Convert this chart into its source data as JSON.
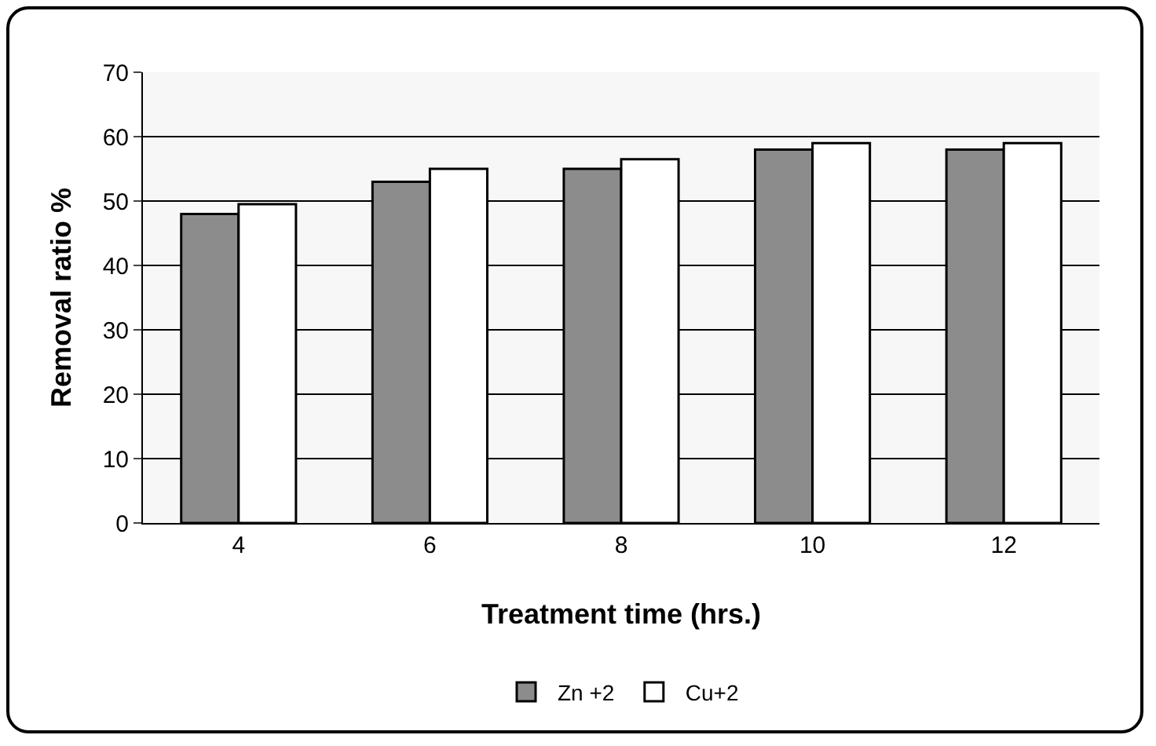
{
  "chart_data": {
    "type": "bar",
    "xlabel": "Treatment time (hrs.)",
    "ylabel": "Removal ratio %",
    "categories": [
      "4",
      "6",
      "8",
      "10",
      "12"
    ],
    "series": [
      {
        "name": "Zn +2",
        "color": "#8c8c8c",
        "values": [
          48,
          53,
          55,
          58,
          58
        ]
      },
      {
        "name": "Cu+2",
        "color": "#ffffff",
        "values": [
          49.5,
          55,
          56.5,
          59,
          59
        ]
      }
    ],
    "ylim": [
      0,
      70
    ],
    "yticks": [
      0,
      10,
      20,
      30,
      40,
      50,
      60,
      70
    ],
    "grid": "y",
    "legend": "bottom"
  }
}
